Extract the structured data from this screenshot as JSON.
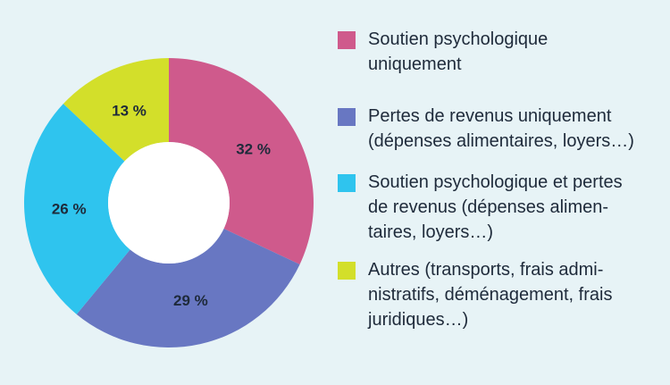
{
  "chart_data": {
    "type": "pie",
    "donut": true,
    "categories": [
      "Soutien psychologique uniquement",
      "Pertes de revenus uniquement (dépenses alimentaires, loyers…)",
      "Soutien psychologique et pertes de revenus (dépenses alimentaires, loyers…)",
      "Autres (transports, frais administratifs, déménagement, frais juridiques…)"
    ],
    "values": [
      32,
      29,
      26,
      13
    ],
    "value_labels": [
      "32 %",
      "29 %",
      "26 %",
      "13 %"
    ],
    "colors": [
      "#cf5a8c",
      "#6877c2",
      "#2fc4ee",
      "#d3df2a"
    ],
    "legend_lines": [
      [
        "Soutien psychologique",
        "uniquement"
      ],
      [
        "Pertes de revenus uniquement",
        "(dépenses alimentaires, loyers…)"
      ],
      [
        "Soutien psychologique et pertes",
        "de revenus (dépenses alimen-",
        "taires, loyers…)"
      ],
      [
        "Autres (transports, frais admi-",
        "nistratifs, déménagement, frais",
        "juridiques…)"
      ]
    ],
    "legend_position": "right"
  }
}
